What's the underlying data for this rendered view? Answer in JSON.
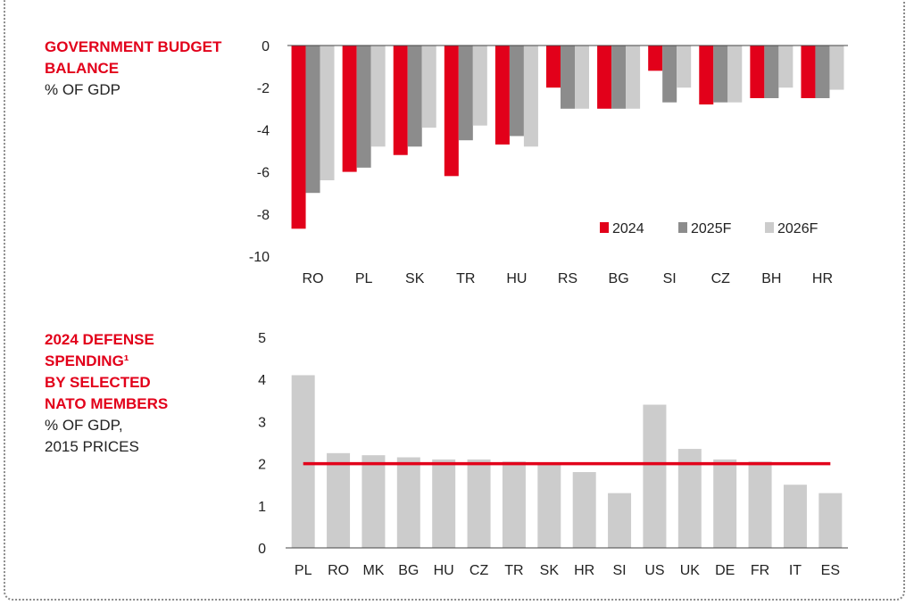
{
  "panels": {
    "budget": {
      "title": "GOVERNMENT BUDGET BALANCE",
      "subtitle": "% OF GDP"
    },
    "defense": {
      "title_line1": "2024 DEFENSE",
      "title_line2": "SPENDING¹",
      "title_line3": "BY SELECTED",
      "title_line4": "NATO MEMBERS",
      "subtitle_line1": "% OF GDP,",
      "subtitle_line2": "2015 PRICES"
    }
  },
  "colors": {
    "red": "#e2001a",
    "dark_gray": "#8c8c8c",
    "light_gray": "#cccccc",
    "axis": "#444444"
  },
  "chart_data": [
    {
      "type": "bar",
      "categories": [
        "RO",
        "PL",
        "SK",
        "TR",
        "HU",
        "RS",
        "BG",
        "SI",
        "CZ",
        "BH",
        "HR"
      ],
      "series": [
        {
          "name": "2024",
          "color": "#e2001a",
          "values": [
            -8.7,
            -6.0,
            -5.2,
            -6.2,
            -4.7,
            -2.0,
            -3.0,
            -1.2,
            -2.8,
            -2.5,
            -2.5
          ]
        },
        {
          "name": "2025F",
          "color": "#8c8c8c",
          "values": [
            -7.0,
            -5.8,
            -4.8,
            -4.5,
            -4.3,
            -3.0,
            -3.0,
            -2.7,
            -2.7,
            -2.5,
            -2.5
          ]
        },
        {
          "name": "2026F",
          "color": "#cccccc",
          "values": [
            -6.4,
            -4.8,
            -3.9,
            -3.8,
            -4.8,
            -3.0,
            -3.0,
            -2.0,
            -2.7,
            -2.0,
            -2.1
          ]
        }
      ],
      "yticks": [
        "0",
        "-2",
        "-4",
        "-6",
        "-8",
        "-10"
      ],
      "ylim": [
        -10,
        0
      ],
      "legend_position": "bottom-right"
    },
    {
      "type": "bar",
      "categories": [
        "PL",
        "RO",
        "MK",
        "BG",
        "HU",
        "CZ",
        "TR",
        "SK",
        "HR",
        "SI",
        "US",
        "UK",
        "DE",
        "FR",
        "IT",
        "ES"
      ],
      "values": [
        4.1,
        2.25,
        2.2,
        2.15,
        2.1,
        2.1,
        2.05,
        2.0,
        1.8,
        1.3,
        3.4,
        2.35,
        2.1,
        2.05,
        1.5,
        1.3
      ],
      "reference_line": 2.0,
      "yticks": [
        "5",
        "4",
        "3",
        "2",
        "1",
        "0"
      ],
      "ylim": [
        0,
        5
      ]
    }
  ]
}
